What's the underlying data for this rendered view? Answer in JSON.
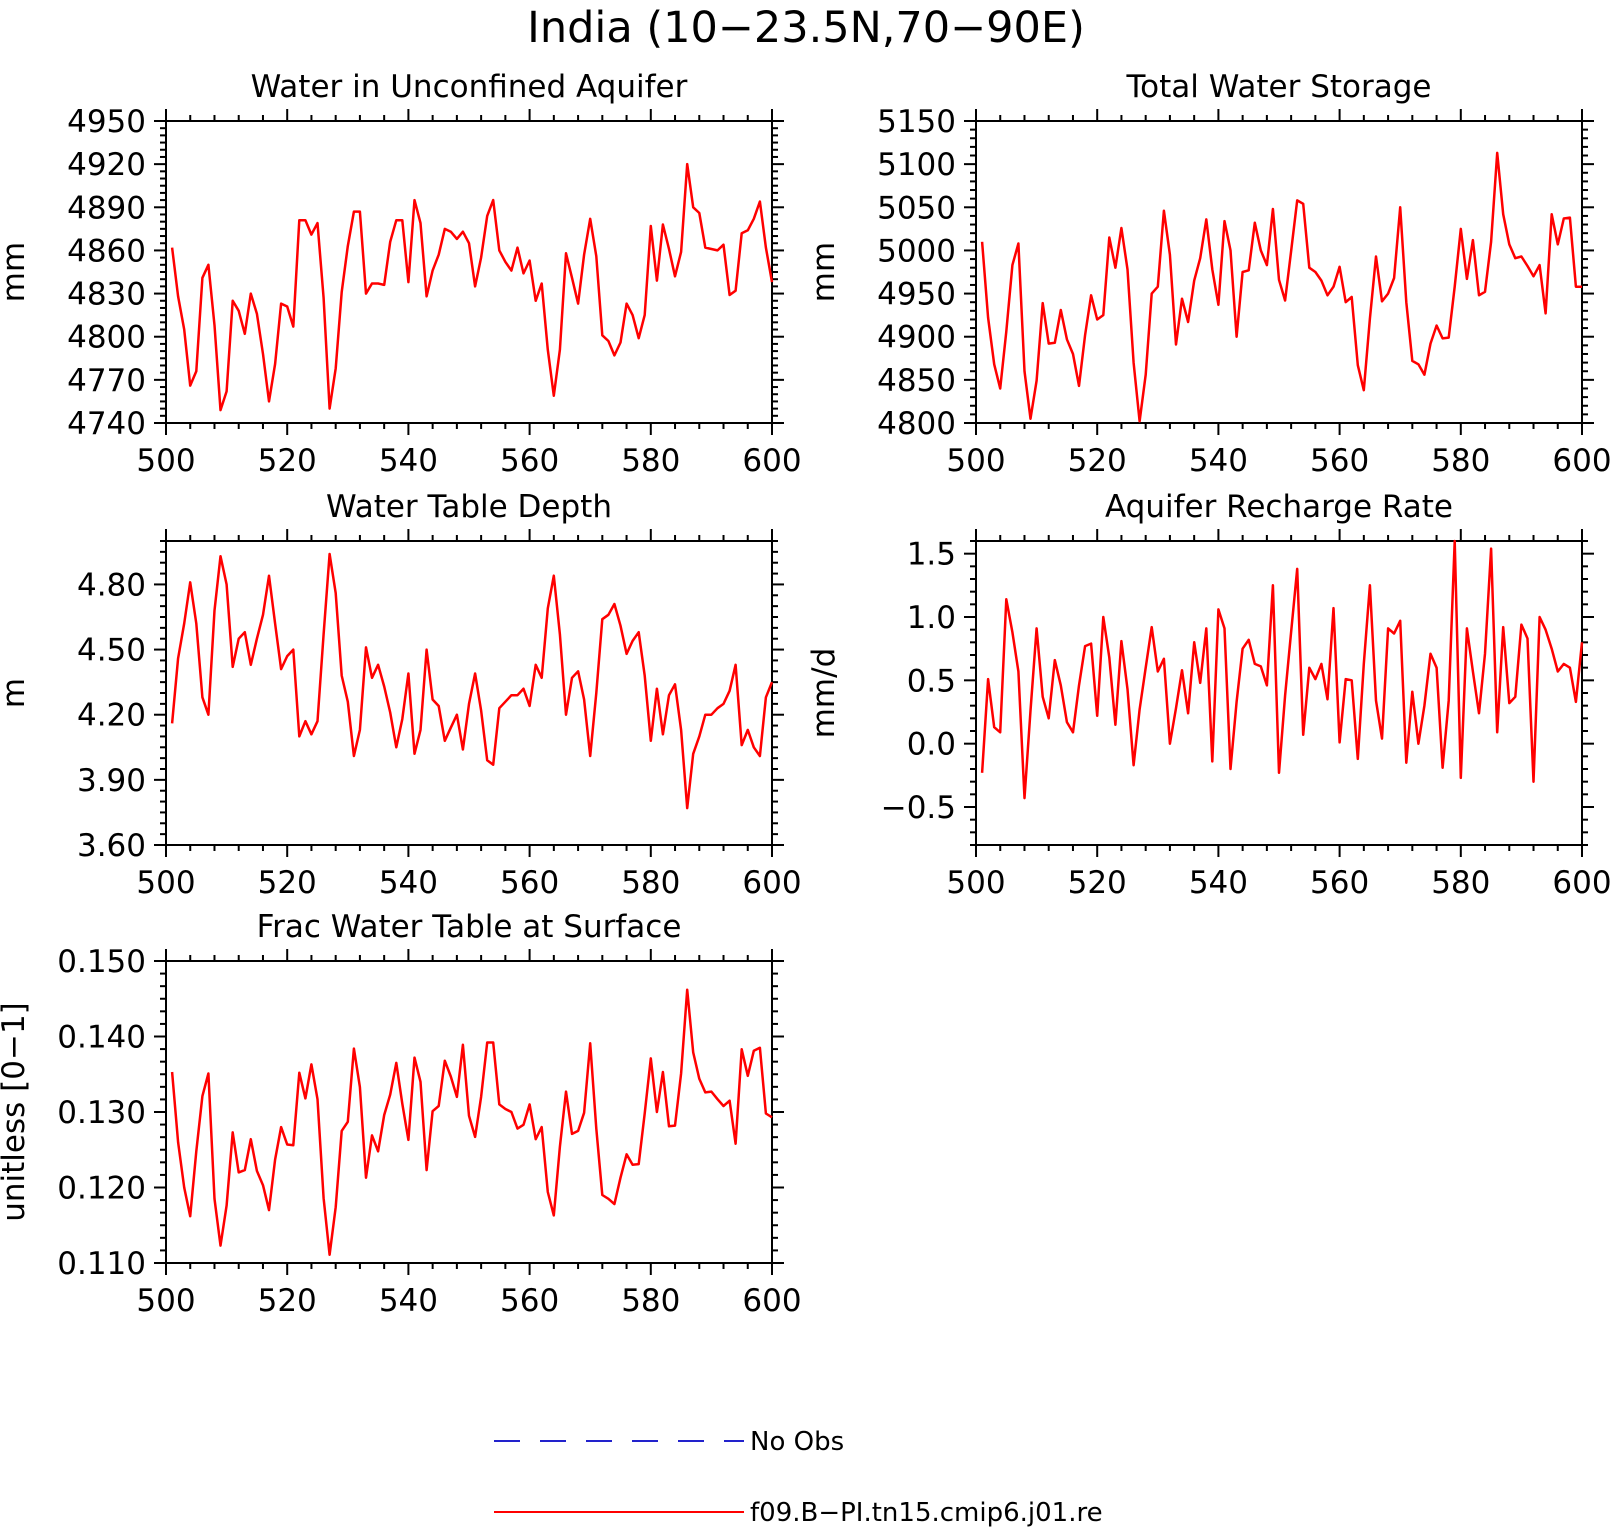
{
  "figure_title": "India (10−23.5N,70−90E)",
  "colors": {
    "model": "#ff0000",
    "obs": "#2222cc",
    "axis": "#000000"
  },
  "legend": {
    "obs_label": "No Obs",
    "model_label": "f09.B−PI.tn15.cmip6.j01.re"
  },
  "chart_data": [
    {
      "id": "unconfined",
      "type": "line",
      "title": "Water in Unconfined Aquifer",
      "ylabel": "mm",
      "xlim": [
        500,
        600
      ],
      "ylim": [
        4740,
        4950
      ],
      "xticks": [
        500,
        520,
        540,
        560,
        580,
        600
      ],
      "xtick_labels": [
        "500",
        "520",
        "540",
        "560",
        "580",
        "600"
      ],
      "yticks": [
        4740,
        4770,
        4800,
        4830,
        4860,
        4890,
        4920,
        4950
      ],
      "ytick_labels": [
        "4740",
        "4770",
        "4800",
        "4830",
        "4860",
        "4890",
        "4920",
        "4950"
      ],
      "yminor": 6,
      "x_start": 501,
      "values": [
        4862,
        4828,
        4805,
        4766,
        4776,
        4841,
        4850,
        4808,
        4749,
        4762,
        4825,
        4818,
        4802,
        4830,
        4816,
        4788,
        4755,
        4781,
        4823,
        4821,
        4807,
        4881,
        4881,
        4871,
        4879,
        4827,
        4750,
        4778,
        4831,
        4863,
        4887,
        4887,
        4830,
        4837,
        4837,
        4836,
        4866,
        4881,
        4881,
        4838,
        4895,
        4879,
        4828,
        4846,
        4857,
        4875,
        4873,
        4868,
        4873,
        4865,
        4835,
        4855,
        4884,
        4895,
        4860,
        4852,
        4846,
        4862,
        4844,
        4853,
        4825,
        4837,
        4791,
        4759,
        4791,
        4858,
        4841,
        4823,
        4857,
        4882,
        4856,
        4801,
        4797,
        4787,
        4796,
        4823,
        4815,
        4799,
        4815,
        4877,
        4839,
        4878,
        4861,
        4842,
        4859,
        4920,
        4890,
        4886,
        4862,
        4861,
        4860,
        4864,
        4829,
        4832,
        4872,
        4874,
        4882,
        4894,
        4862,
        4838
      ]
    },
    {
      "id": "tws",
      "type": "line",
      "title": "Total Water Storage",
      "ylabel": "mm",
      "xlim": [
        500,
        600
      ],
      "ylim": [
        4800,
        5150
      ],
      "xticks": [
        500,
        520,
        540,
        560,
        580,
        600
      ],
      "xtick_labels": [
        "500",
        "520",
        "540",
        "560",
        "580",
        "600"
      ],
      "yticks": [
        4800,
        4850,
        4900,
        4950,
        5000,
        5050,
        5100,
        5150
      ],
      "ytick_labels": [
        "4800",
        "4850",
        "4900",
        "4950",
        "5000",
        "5050",
        "5100",
        "5150"
      ],
      "yminor": 5,
      "x_start": 501,
      "values": [
        5010,
        4922,
        4868,
        4840,
        4906,
        4983,
        5008,
        4860,
        4805,
        4849,
        4939,
        4892,
        4893,
        4931,
        4897,
        4880,
        4843,
        4902,
        4948,
        4920,
        4925,
        5015,
        4980,
        5026,
        4978,
        4870,
        4802,
        4856,
        4950,
        4958,
        5046,
        4995,
        4891,
        4944,
        4917,
        4965,
        4991,
        5036,
        4978,
        4937,
        5034,
        5000,
        4900,
        4975,
        4977,
        5032,
        5000,
        4983,
        5048,
        4966,
        4942,
        4999,
        5058,
        5054,
        4980,
        4975,
        4965,
        4948,
        4958,
        4981,
        4940,
        4946,
        4867,
        4838,
        4921,
        4993,
        4941,
        4950,
        4968,
        5050,
        4940,
        4872,
        4868,
        4856,
        4892,
        4913,
        4898,
        4899,
        4958,
        5025,
        4967,
        5012,
        4948,
        4952,
        5010,
        5113,
        5042,
        5007,
        4991,
        4993,
        4982,
        4970,
        4983,
        4927,
        5042,
        5007,
        5037,
        5038,
        4958,
        4958
      ]
    },
    {
      "id": "wtd",
      "type": "line",
      "title": "Water Table Depth",
      "ylabel": "m",
      "xlim": [
        500,
        600
      ],
      "ylim": [
        3.6,
        5.0
      ],
      "xticks": [
        500,
        520,
        540,
        560,
        580,
        600
      ],
      "xtick_labels": [
        "500",
        "520",
        "540",
        "560",
        "580",
        "600"
      ],
      "yticks": [
        3.6,
        3.9,
        4.2,
        4.5,
        4.8
      ],
      "ytick_labels": [
        "3.60",
        "3.90",
        "4.20",
        "4.50",
        "4.80"
      ],
      "yminor": 6,
      "x_start": 501,
      "values": [
        4.16,
        4.46,
        4.62,
        4.81,
        4.62,
        4.28,
        4.2,
        4.68,
        4.93,
        4.8,
        4.42,
        4.55,
        4.58,
        4.43,
        4.55,
        4.66,
        4.84,
        4.62,
        4.41,
        4.47,
        4.5,
        4.1,
        4.17,
        4.11,
        4.17,
        4.57,
        4.94,
        4.76,
        4.38,
        4.26,
        4.01,
        4.13,
        4.51,
        4.37,
        4.43,
        4.33,
        4.21,
        4.05,
        4.18,
        4.39,
        4.02,
        4.13,
        4.5,
        4.27,
        4.24,
        4.08,
        4.14,
        4.2,
        4.04,
        4.25,
        4.39,
        4.22,
        3.99,
        3.97,
        4.23,
        4.26,
        4.29,
        4.29,
        4.32,
        4.24,
        4.43,
        4.37,
        4.69,
        4.84,
        4.57,
        4.2,
        4.37,
        4.4,
        4.27,
        4.01,
        4.3,
        4.64,
        4.66,
        4.71,
        4.61,
        4.48,
        4.54,
        4.58,
        4.38,
        4.08,
        4.32,
        4.11,
        4.29,
        4.34,
        4.13,
        3.77,
        4.02,
        4.1,
        4.2,
        4.2,
        4.23,
        4.25,
        4.31,
        4.43,
        4.06,
        4.13,
        4.05,
        4.01,
        4.28,
        4.35
      ]
    },
    {
      "id": "recharge",
      "type": "line",
      "title": "Aquifer Recharge Rate",
      "ylabel": "mm/d",
      "xlim": [
        500,
        600
      ],
      "ylim": [
        -0.8,
        1.6
      ],
      "xticks": [
        500,
        520,
        540,
        560,
        580,
        600
      ],
      "xtick_labels": [
        "500",
        "520",
        "540",
        "560",
        "580",
        "600"
      ],
      "yticks": [
        -0.5,
        0.0,
        0.5,
        1.0,
        1.5
      ],
      "ytick_labels": [
        "−0.5",
        "0.0",
        "0.5",
        "1.0",
        "1.5"
      ],
      "yminor": 5,
      "x_start": 501,
      "values": [
        -0.23,
        0.51,
        0.13,
        0.09,
        1.14,
        0.88,
        0.57,
        -0.43,
        0.26,
        0.91,
        0.37,
        0.2,
        0.66,
        0.46,
        0.17,
        0.09,
        0.46,
        0.77,
        0.79,
        0.22,
        1.0,
        0.68,
        0.15,
        0.81,
        0.43,
        -0.17,
        0.27,
        0.6,
        0.92,
        0.57,
        0.67,
        0.0,
        0.28,
        0.58,
        0.24,
        0.8,
        0.48,
        0.91,
        -0.14,
        1.06,
        0.91,
        -0.2,
        0.33,
        0.75,
        0.82,
        0.63,
        0.61,
        0.46,
        1.25,
        -0.23,
        0.38,
        0.88,
        1.38,
        0.07,
        0.6,
        0.51,
        0.63,
        0.35,
        1.07,
        0.01,
        0.51,
        0.5,
        -0.12,
        0.63,
        1.25,
        0.34,
        0.04,
        0.91,
        0.87,
        0.97,
        -0.15,
        0.41,
        0.0,
        0.3,
        0.71,
        0.6,
        -0.19,
        0.34,
        1.6,
        -0.27,
        0.91,
        0.57,
        0.24,
        0.71,
        1.54,
        0.09,
        0.92,
        0.32,
        0.37,
        0.94,
        0.83,
        -0.3,
        1.0,
        0.9,
        0.75,
        0.57,
        0.63,
        0.6,
        0.33,
        0.8
      ]
    },
    {
      "id": "fracwt",
      "type": "line",
      "title": "Frac Water Table at Surface",
      "ylabel": "unitless [0−1]",
      "xlim": [
        500,
        600
      ],
      "ylim": [
        0.11,
        0.15
      ],
      "xticks": [
        500,
        520,
        540,
        560,
        580,
        600
      ],
      "xtick_labels": [
        "500",
        "520",
        "540",
        "560",
        "580",
        "600"
      ],
      "yticks": [
        0.11,
        0.12,
        0.13,
        0.14,
        0.15
      ],
      "ytick_labels": [
        "0.110",
        "0.120",
        "0.130",
        "0.140",
        "0.150"
      ],
      "yminor": 6,
      "x_start": 501,
      "values": [
        0.1353,
        0.126,
        0.12,
        0.1162,
        0.1248,
        0.1321,
        0.1351,
        0.1185,
        0.1123,
        0.1176,
        0.1273,
        0.122,
        0.1223,
        0.1264,
        0.1222,
        0.1203,
        0.117,
        0.1237,
        0.128,
        0.1257,
        0.1256,
        0.1352,
        0.1318,
        0.1363,
        0.1317,
        0.1186,
        0.1111,
        0.1174,
        0.1275,
        0.1287,
        0.1384,
        0.1333,
        0.1213,
        0.1269,
        0.1248,
        0.1296,
        0.1323,
        0.1365,
        0.1311,
        0.1263,
        0.1372,
        0.134,
        0.1223,
        0.1301,
        0.1308,
        0.1368,
        0.1347,
        0.132,
        0.1389,
        0.1295,
        0.1267,
        0.132,
        0.1392,
        0.1392,
        0.131,
        0.1304,
        0.13,
        0.1278,
        0.1283,
        0.131,
        0.1264,
        0.128,
        0.1194,
        0.1163,
        0.1254,
        0.1327,
        0.1271,
        0.1275,
        0.1299,
        0.1391,
        0.1278,
        0.119,
        0.1185,
        0.1178,
        0.1213,
        0.1244,
        0.123,
        0.1231,
        0.1298,
        0.1371,
        0.13,
        0.1353,
        0.1281,
        0.1282,
        0.1351,
        0.1462,
        0.1379,
        0.1344,
        0.1326,
        0.1327,
        0.1317,
        0.1308,
        0.1315,
        0.1258,
        0.1383,
        0.1348,
        0.1381,
        0.1385,
        0.1298,
        0.1293
      ]
    }
  ]
}
